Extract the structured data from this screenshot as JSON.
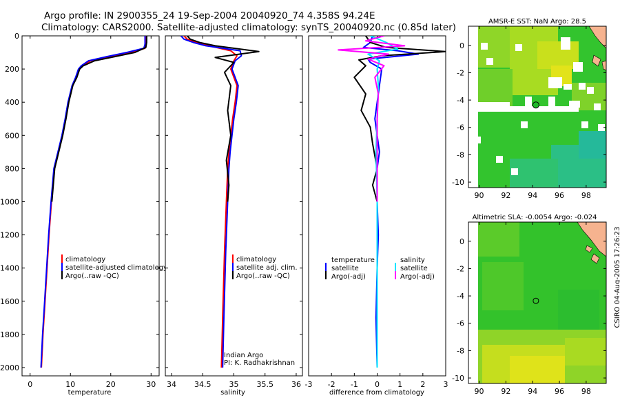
{
  "title_line1": "Argo profile: IN 2900355_24 19-Sep-2004 20040920_74 4.358S 94.24E",
  "title_line2": "Climatology: CARS2000. Satellite-adjusted climatology: synTS_20040920.nc (0.85d later)",
  "stamp": "CSIRO 04-Aug-2005 17:26:23",
  "colors": {
    "red": "#ff0000",
    "blue": "#0000ff",
    "black": "#000000",
    "cyan": "#00e5ff",
    "magenta": "#ff00ff"
  },
  "chart_data": [
    {
      "type": "line",
      "xlabel": "temperature",
      "ylim": [
        2050,
        0
      ],
      "xlim": [
        -2,
        32
      ],
      "xticks": [
        "0",
        "10",
        "20",
        "30"
      ],
      "xtick_values": [
        0,
        10,
        20,
        30
      ],
      "yticks": [
        "0",
        "200",
        "400",
        "600",
        "800",
        "1000",
        "1200",
        "1400",
        "1600",
        "1800",
        "2000"
      ],
      "ytick_values": [
        0,
        200,
        400,
        600,
        800,
        1000,
        1200,
        1400,
        1600,
        1800,
        2000
      ],
      "legend": [
        "climatology",
        "satellite-adjusted climatology",
        "Argo(..raw -QC)"
      ],
      "series": [
        {
          "name": "climatology",
          "color": "red",
          "x": [
            28.7,
            28.7,
            28.5,
            25,
            20,
            15,
            13,
            12.2,
            11.5,
            10.5,
            9.5,
            8.8,
            8,
            7,
            6,
            5.3,
            4.7,
            4.2,
            3.7,
            3.2,
            2.8
          ],
          "y": [
            0,
            50,
            75,
            100,
            125,
            150,
            180,
            200,
            250,
            300,
            400,
            500,
            600,
            700,
            800,
            1000,
            1200,
            1400,
            1600,
            1800,
            2000
          ]
        },
        {
          "name": "satellite-adjusted climatology",
          "color": "blue",
          "x": [
            28.5,
            28.5,
            28.2,
            24,
            19,
            14.5,
            12.7,
            12,
            11.3,
            10.4,
            9.4,
            8.7,
            7.9,
            6.9,
            5.9,
            5.2,
            4.6,
            4.1,
            3.6,
            3.1,
            2.7
          ],
          "y": [
            0,
            50,
            75,
            100,
            125,
            150,
            180,
            200,
            250,
            300,
            400,
            500,
            600,
            700,
            800,
            1000,
            1200,
            1400,
            1600,
            1800,
            2000
          ]
        },
        {
          "name": "Argo(..raw -QC)",
          "color": "black",
          "x": [
            28.9,
            28.9,
            28.7,
            26,
            21,
            16,
            13.2,
            12.3,
            11.6,
            10.6,
            9.6,
            8.9,
            8.1,
            7.1,
            6.1,
            5.4
          ],
          "y": [
            0,
            40,
            70,
            100,
            125,
            150,
            180,
            200,
            250,
            300,
            400,
            500,
            600,
            700,
            800,
            1000
          ]
        }
      ]
    },
    {
      "type": "line",
      "xlabel": "salinity",
      "ylim": [
        2050,
        0
      ],
      "xlim": [
        33.9,
        36.1
      ],
      "xticks": [
        "34",
        "34.5",
        "35",
        "35.5",
        "36"
      ],
      "xtick_values": [
        34,
        34.5,
        35,
        35.5,
        36
      ],
      "legend": [
        "climatology",
        "satellite adj. clim.",
        "Argo(..raw -QC)"
      ],
      "annotation": [
        "Indian Argo",
        "PI: K. Radhakrishnan"
      ],
      "series": [
        {
          "name": "climatology",
          "color": "red",
          "x": [
            34.2,
            34.25,
            34.4,
            34.6,
            34.95,
            35.05,
            35,
            34.95,
            35.05,
            35.02,
            34.98,
            34.95,
            34.92,
            34.9,
            34.88,
            34.85,
            34.82,
            34.8
          ],
          "y": [
            0,
            20,
            40,
            60,
            90,
            120,
            150,
            200,
            300,
            400,
            500,
            600,
            700,
            800,
            1000,
            1300,
            1700,
            2000
          ]
        },
        {
          "name": "satellite adj. clim.",
          "color": "blue",
          "x": [
            34.15,
            34.2,
            34.35,
            34.55,
            35.1,
            35.12,
            35.02,
            34.97,
            35.07,
            35.04,
            35,
            34.97,
            34.94,
            34.92,
            34.9,
            34.87,
            34.84,
            34.82
          ],
          "y": [
            0,
            20,
            40,
            60,
            90,
            120,
            150,
            200,
            300,
            400,
            500,
            600,
            700,
            800,
            1000,
            1300,
            1700,
            2000
          ]
        },
        {
          "name": "Argo(..raw -QC)",
          "color": "black",
          "x": [
            34.25,
            34.3,
            34.45,
            34.7,
            35.4,
            34.7,
            35.0,
            34.85,
            34.95,
            34.9,
            34.95,
            34.88,
            34.92,
            34.9
          ],
          "y": [
            0,
            20,
            40,
            60,
            95,
            130,
            160,
            220,
            300,
            450,
            600,
            750,
            900,
            1000
          ]
        }
      ]
    },
    {
      "type": "line",
      "xlabel": "difference from climatology",
      "ylim": [
        2050,
        0
      ],
      "xlim": [
        -3,
        3
      ],
      "xticks": [
        "-3",
        "-2",
        "-1",
        "0",
        "1",
        "2",
        "3"
      ],
      "xtick_values": [
        -3,
        -2,
        -1,
        0,
        1,
        2,
        3
      ],
      "legend_left": [
        "temperature",
        "satellite",
        "Argo(-adj)"
      ],
      "legend_right": [
        "salinity",
        "satellite",
        "Argo(-adj)"
      ],
      "series": [
        {
          "name": "satellite (temperature)",
          "color": "blue",
          "x": [
            -0.2,
            -0.3,
            -0.6,
            0.9,
            1.8,
            -0.4,
            -0.3,
            0.2,
            0.1,
            0,
            -0.1,
            0,
            0.1,
            0,
            0,
            0.05,
            0,
            -0.05,
            0
          ],
          "y": [
            0,
            40,
            70,
            90,
            110,
            140,
            160,
            200,
            300,
            400,
            500,
            600,
            700,
            800,
            1000,
            1200,
            1400,
            1700,
            2000
          ]
        },
        {
          "name": "Argo(-adj) (temperature)",
          "color": "black",
          "x": [
            -0.5,
            -0.3,
            0.4,
            3,
            0.2,
            -0.8,
            -0.5,
            -1.0,
            -0.5,
            -0.7,
            -0.3,
            -0.2,
            0,
            -0.2,
            0
          ],
          "y": [
            0,
            40,
            70,
            95,
            120,
            145,
            180,
            250,
            350,
            450,
            550,
            650,
            800,
            900,
            1000
          ]
        },
        {
          "name": "satellite (salinity)",
          "color": "cyan",
          "x": [
            -0.3,
            0.4,
            0.9,
            -0.4,
            0.1,
            0,
            0.05,
            0,
            -0.05,
            0,
            0,
            0,
            0
          ],
          "y": [
            0,
            40,
            80,
            110,
            150,
            200,
            300,
            500,
            700,
            1000,
            1300,
            1700,
            2000
          ]
        },
        {
          "name": "Argo(-adj) (salinity)",
          "color": "magenta",
          "x": [
            0.3,
            -0.5,
            1.2,
            -1.7,
            0.5,
            -0.4,
            0.3,
            -0.1,
            0.05,
            0,
            0,
            0
          ],
          "y": [
            0,
            30,
            60,
            85,
            110,
            140,
            180,
            250,
            350,
            500,
            700,
            1000
          ]
        }
      ]
    },
    {
      "type": "heatmap",
      "title": "AMSR-E SST: NaN Argo: 28.5",
      "xticks": [
        "90",
        "92",
        "94",
        "96",
        "98"
      ],
      "xtick_values": [
        90,
        92,
        94,
        96,
        98
      ],
      "yticks": [
        "0",
        "-2",
        "-4",
        "-6",
        "-8",
        "-10"
      ],
      "ytick_values": [
        0,
        -2,
        -4,
        -6,
        -8,
        -10
      ],
      "xlim": [
        89.2,
        99.5
      ],
      "ylim": [
        -10.4,
        1.4
      ],
      "marker": {
        "lon": 94.24,
        "lat": -4.358
      }
    },
    {
      "type": "heatmap",
      "title": "Altimetric SLA: -0.0054 Argo: -0.024",
      "xticks": [
        "90",
        "92",
        "94",
        "96",
        "98"
      ],
      "xtick_values": [
        90,
        92,
        94,
        96,
        98
      ],
      "yticks": [
        "0",
        "-2",
        "-4",
        "-6",
        "-8",
        "-10"
      ],
      "ytick_values": [
        0,
        -2,
        -4,
        -6,
        -8,
        -10
      ],
      "xlim": [
        89.2,
        99.5
      ],
      "ylim": [
        -10.4,
        1.4
      ],
      "marker": {
        "lon": 94.24,
        "lat": -4.358
      }
    }
  ]
}
